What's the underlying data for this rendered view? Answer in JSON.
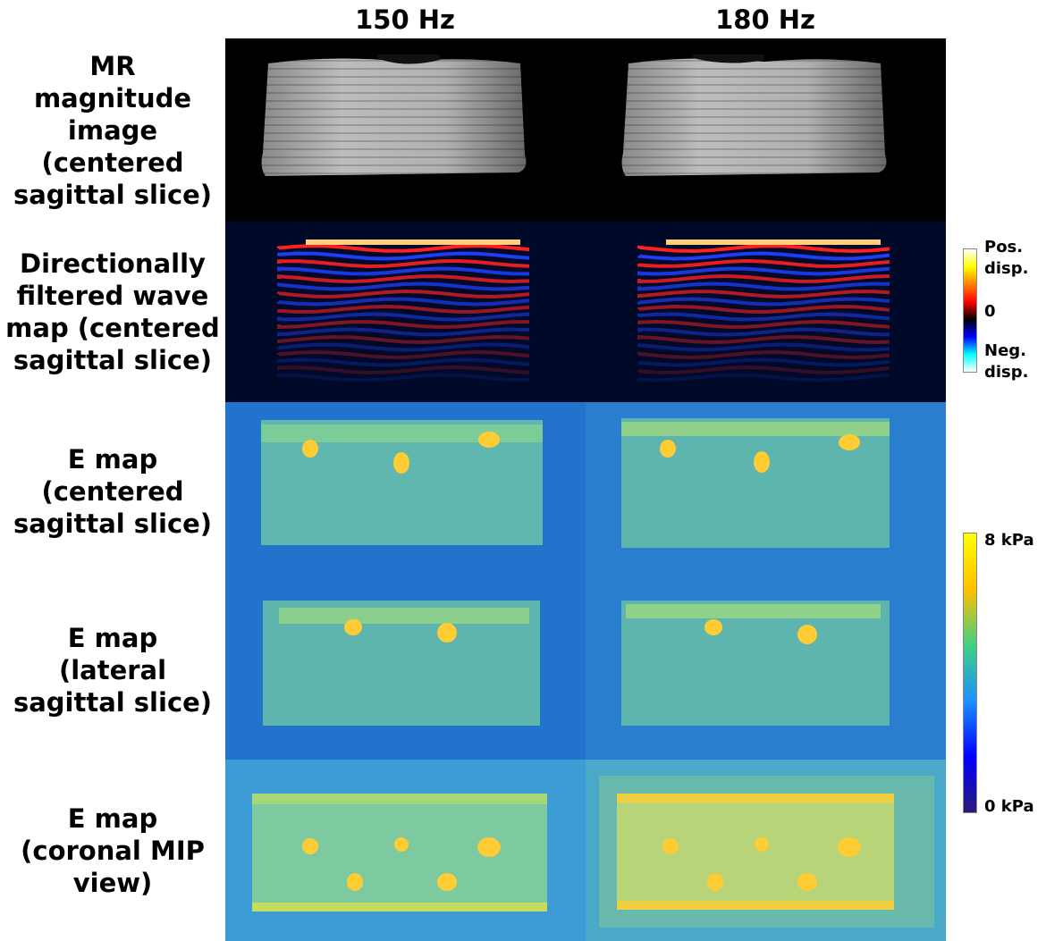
{
  "columns": [
    "150 Hz",
    "180 Hz"
  ],
  "rows": [
    {
      "label_lines": [
        "MR",
        "magnitude",
        "image",
        "(centered",
        "sagittal slice)"
      ]
    },
    {
      "label_lines": [
        "Directionally",
        "filtered wave",
        "map (centered",
        "sagittal slice)"
      ]
    },
    {
      "label_lines": [
        "E map",
        "(centered",
        "sagittal slice)"
      ]
    },
    {
      "label_lines": [
        "E map",
        "(lateral",
        "sagittal slice)"
      ]
    },
    {
      "label_lines": [
        "E map",
        "(coronal MIP",
        "view)"
      ]
    }
  ],
  "wave_colorbar": {
    "labels": [
      "Pos.",
      "disp.",
      "0",
      "Neg.",
      "disp."
    ],
    "colors": [
      "#ffffff",
      "#ffff00",
      "#ff8000",
      "#ff0000",
      "#000000",
      "#0000ff",
      "#00ffff",
      "#ffffff"
    ]
  },
  "e_colorbar": {
    "max_label": "8 kPa",
    "min_label": "0 kPa",
    "colors": [
      "#ffff00",
      "#ffc000",
      "#40d080",
      "#1e90ff",
      "#0000ff",
      "#2a1a7a"
    ]
  },
  "colors": {
    "e_background": "#1f6fc8",
    "e_phantom": "#6fc4a0",
    "e_inclusion": "#ffd23c",
    "mag_background": "#000000",
    "wave_background": "#000a28"
  },
  "icons": []
}
